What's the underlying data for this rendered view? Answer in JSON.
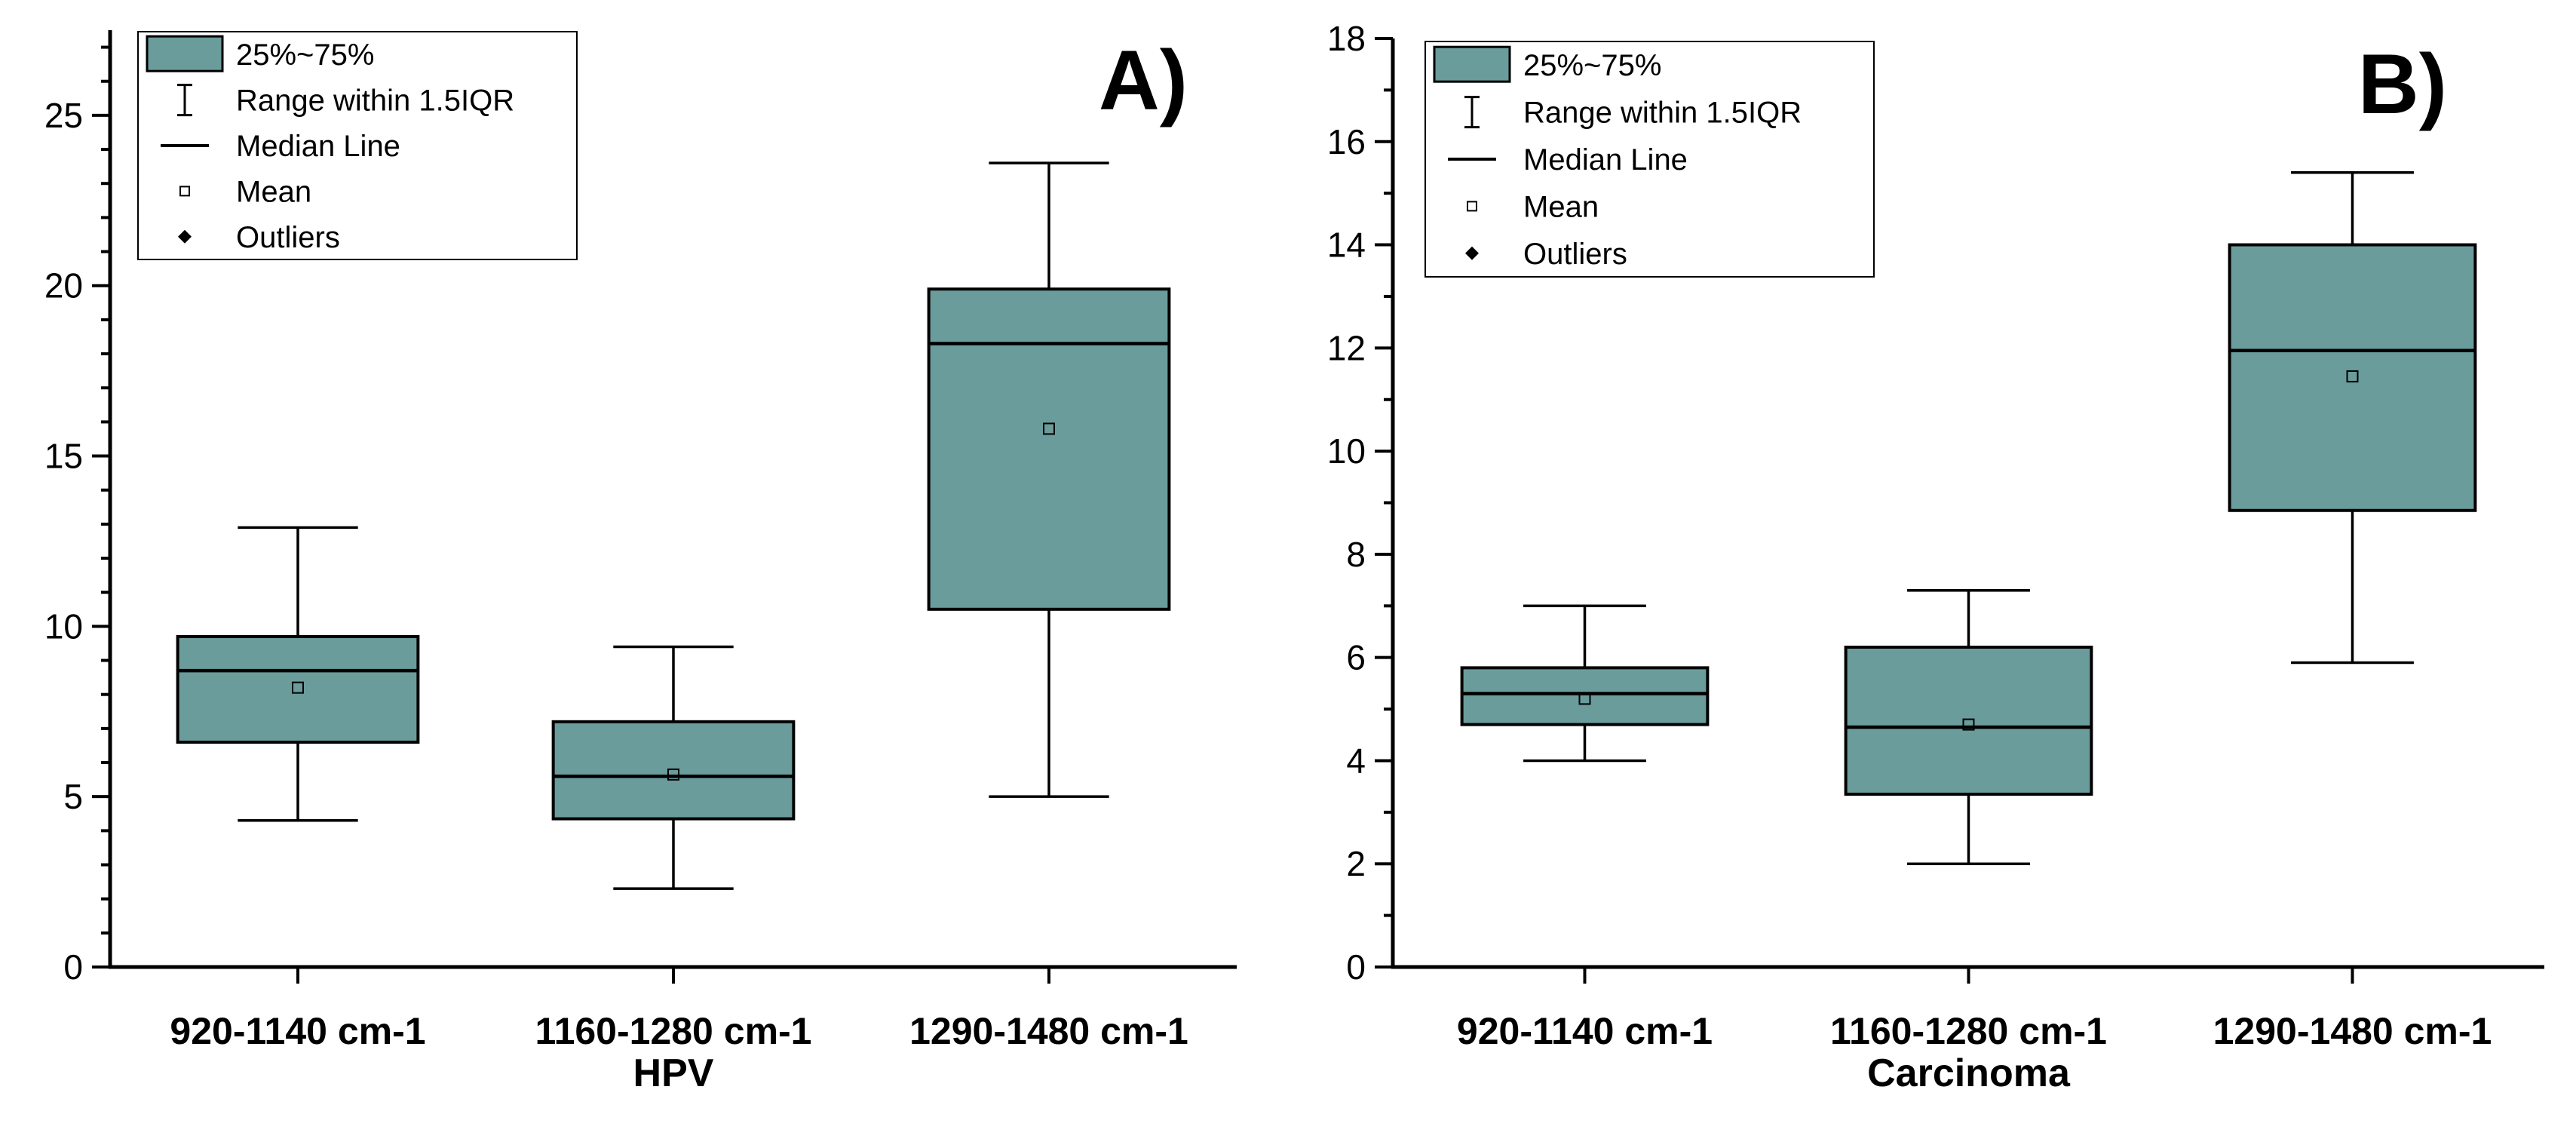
{
  "chart_data": [
    {
      "type": "box",
      "panel_label": "A)",
      "xlabel": "HPV",
      "ylabel": "",
      "ylim": [
        0,
        27.5
      ],
      "yticks": [
        0,
        5,
        10,
        15,
        20,
        25
      ],
      "ytick_labels": [
        "0",
        "5",
        "10",
        "15",
        "20",
        "25"
      ],
      "minor_ytick_step": 1,
      "categories": [
        "920-1140 cm-1",
        "1160-1280 cm-1",
        "1290-1480 cm-1"
      ],
      "boxes": [
        {
          "whisker_low": 4.3,
          "q1": 6.6,
          "median": 8.7,
          "q3": 9.7,
          "whisker_high": 12.9,
          "mean": 8.2
        },
        {
          "whisker_low": 2.3,
          "q1": 4.35,
          "median": 5.6,
          "q3": 7.2,
          "whisker_high": 9.4,
          "mean": 5.65
        },
        {
          "whisker_low": 5.0,
          "q1": 10.5,
          "median": 18.3,
          "q3": 19.9,
          "whisker_high": 23.6,
          "mean": 15.8
        }
      ],
      "box_color": "#6a9c9b",
      "legend_position": "top-left",
      "legend": [
        {
          "symbol": "box",
          "label": "25%~75%"
        },
        {
          "symbol": "whisker",
          "label": "Range within 1.5IQR"
        },
        {
          "symbol": "line",
          "label": "Median Line"
        },
        {
          "symbol": "square",
          "label": "Mean"
        },
        {
          "symbol": "diamond",
          "label": "Outliers"
        }
      ]
    },
    {
      "type": "box",
      "panel_label": "B)",
      "xlabel": "Carcinoma",
      "ylabel": "",
      "ylim": [
        0,
        18
      ],
      "yticks": [
        0,
        2,
        4,
        6,
        8,
        10,
        12,
        14,
        16,
        18
      ],
      "ytick_labels": [
        "0",
        "2",
        "4",
        "6",
        "8",
        "10",
        "12",
        "14",
        "16",
        "18"
      ],
      "minor_ytick_step": 1,
      "categories": [
        "920-1140 cm-1",
        "1160-1280 cm-1",
        "1290-1480 cm-1"
      ],
      "boxes": [
        {
          "whisker_low": 4.0,
          "q1": 4.7,
          "median": 5.3,
          "q3": 5.8,
          "whisker_high": 7.0,
          "mean": 5.2
        },
        {
          "whisker_low": 2.0,
          "q1": 3.35,
          "median": 4.65,
          "q3": 6.2,
          "whisker_high": 7.3,
          "mean": 4.7
        },
        {
          "whisker_low": 5.9,
          "q1": 8.85,
          "median": 11.95,
          "q3": 14.0,
          "whisker_high": 15.4,
          "mean": 11.45
        }
      ],
      "box_color": "#6a9c9b",
      "legend_position": "top-left",
      "legend": [
        {
          "symbol": "box",
          "label": "25%~75%"
        },
        {
          "symbol": "whisker",
          "label": "Range within 1.5IQR"
        },
        {
          "symbol": "line",
          "label": "Median Line"
        },
        {
          "symbol": "square",
          "label": "Mean"
        },
        {
          "symbol": "diamond",
          "label": "Outliers"
        }
      ]
    }
  ]
}
